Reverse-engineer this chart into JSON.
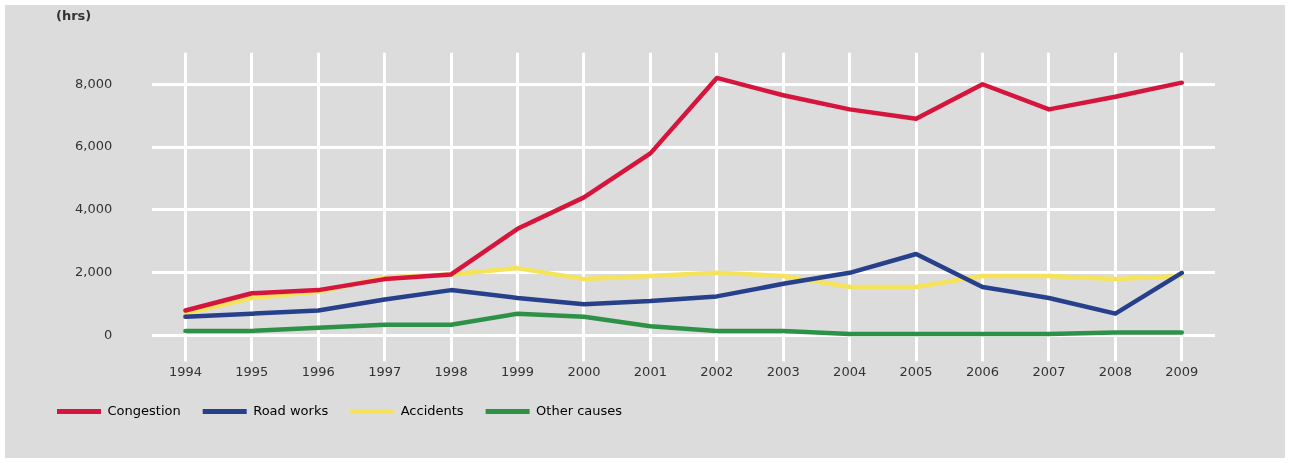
{
  "chart_data": {
    "type": "line",
    "ylabel": "(hrs)",
    "categories": [
      "1994",
      "1995",
      "1996",
      "1997",
      "1998",
      "1999",
      "2000",
      "2001",
      "2002",
      "2003",
      "2004",
      "2005",
      "2006",
      "2007",
      "2008",
      "2009"
    ],
    "series": [
      {
        "name": "Congestion",
        "color": "#d6153d",
        "values": [
          800,
          1350,
          1450,
          1800,
          1950,
          3400,
          4400,
          5800,
          8200,
          7650,
          7200,
          6900,
          8000,
          7200,
          7600,
          8050
        ]
      },
      {
        "name": "Road works",
        "color": "#27408b",
        "values": [
          600,
          700,
          800,
          1150,
          1450,
          1200,
          1000,
          1100,
          1250,
          1650,
          2000,
          2600,
          1550,
          1200,
          700,
          2000
        ]
      },
      {
        "name": "Accidents",
        "color": "#f5e35a",
        "values": [
          700,
          1200,
          1400,
          1850,
          1950,
          2150,
          1800,
          1900,
          2000,
          1900,
          1550,
          1550,
          1900,
          1900,
          1800,
          1900
        ]
      },
      {
        "name": "Other causes",
        "color": "#2e9148",
        "values": [
          150,
          150,
          250,
          350,
          350,
          700,
          600,
          300,
          150,
          150,
          50,
          50,
          50,
          50,
          100,
          100
        ]
      }
    ],
    "ylim": [
      -500,
      9000
    ],
    "yticks": [
      {
        "value": 0,
        "label": "0"
      },
      {
        "value": 2000,
        "label": "2,000"
      },
      {
        "value": 4000,
        "label": "4,000"
      },
      {
        "value": 6000,
        "label": "6,000"
      },
      {
        "value": 8000,
        "label": "8,000"
      }
    ],
    "grid": true,
    "legend": "bottom left",
    "marker": "none",
    "line_style": "solid"
  }
}
